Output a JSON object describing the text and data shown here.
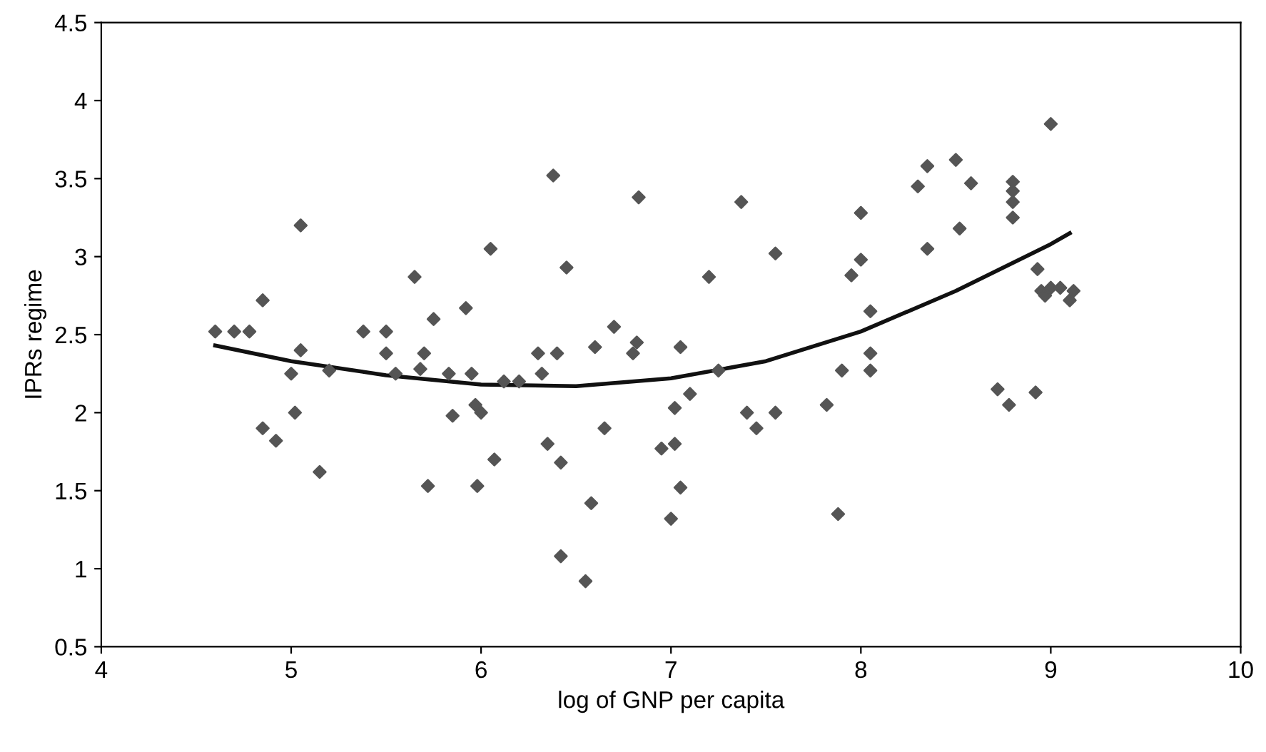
{
  "chart_data": {
    "type": "scatter",
    "xlabel": "log of GNP per capita",
    "ylabel": "IPRs regime",
    "xlim": [
      4,
      10
    ],
    "ylim": [
      0.5,
      4.5
    ],
    "xticks": [
      4,
      5,
      6,
      7,
      8,
      9,
      10
    ],
    "yticks": [
      0.5,
      1,
      1.5,
      2,
      2.5,
      3,
      3.5,
      4,
      4.5
    ],
    "grid": false,
    "marker": "diamond",
    "series": [
      {
        "color": "#555555",
        "x": [
          4.6,
          4.7,
          4.78,
          4.85,
          4.85,
          4.92,
          5.05,
          5.02,
          5.0,
          5.05,
          5.15,
          5.2,
          5.38,
          5.5,
          5.5,
          5.55,
          5.65,
          5.68,
          5.7,
          5.72,
          5.75,
          5.83,
          5.85,
          5.92,
          5.95,
          5.97,
          5.98,
          6.0,
          6.05,
          6.07,
          6.12,
          6.2,
          6.3,
          6.32,
          6.35,
          6.38,
          6.4,
          6.42,
          6.42,
          6.45,
          6.55,
          6.58,
          6.6,
          6.65,
          6.7,
          6.8,
          6.82,
          6.83,
          6.95,
          7.0,
          7.02,
          7.02,
          7.05,
          7.05,
          7.1,
          7.2,
          7.25,
          7.37,
          7.4,
          7.45,
          7.55,
          7.55,
          7.82,
          7.88,
          7.9,
          7.95,
          8.0,
          8.0,
          8.05,
          8.05,
          8.05,
          8.3,
          8.35,
          8.35,
          8.5,
          8.52,
          8.58,
          8.72,
          8.78,
          8.8,
          8.8,
          8.8,
          8.8,
          8.92,
          8.93,
          8.95,
          8.97,
          9.0,
          9.0,
          9.05,
          9.1,
          9.12
        ],
        "values": [
          2.52,
          2.52,
          2.52,
          2.72,
          1.9,
          1.82,
          3.2,
          2.0,
          2.25,
          2.4,
          1.62,
          2.27,
          2.52,
          2.52,
          2.38,
          2.25,
          2.87,
          2.28,
          2.38,
          1.53,
          2.6,
          2.25,
          1.98,
          2.67,
          2.25,
          2.05,
          1.53,
          2.0,
          3.05,
          1.7,
          2.2,
          2.2,
          2.38,
          2.25,
          1.8,
          3.52,
          2.38,
          1.68,
          1.08,
          2.93,
          0.92,
          1.42,
          2.42,
          1.9,
          2.55,
          2.38,
          2.45,
          3.38,
          1.77,
          1.32,
          1.8,
          2.03,
          1.52,
          2.42,
          2.12,
          2.87,
          2.27,
          3.35,
          2.0,
          1.9,
          3.02,
          2.0,
          2.05,
          1.35,
          2.27,
          2.88,
          2.98,
          3.28,
          2.65,
          2.38,
          2.27,
          3.45,
          3.58,
          3.05,
          3.62,
          3.18,
          3.47,
          2.15,
          2.05,
          3.48,
          3.42,
          3.25,
          3.35,
          2.13,
          2.92,
          2.78,
          2.75,
          2.8,
          3.85,
          2.8,
          2.72,
          2.78
        ]
      },
      {
        "type": "line",
        "color": "#111111",
        "marker": "none",
        "x": [
          4.6,
          5,
          5.5,
          6,
          6.5,
          7,
          7.5,
          8,
          8.5,
          9,
          9.1
        ],
        "values": [
          2.43,
          2.33,
          2.24,
          2.18,
          2.17,
          2.22,
          2.33,
          2.52,
          2.78,
          3.08,
          3.15
        ]
      }
    ]
  }
}
